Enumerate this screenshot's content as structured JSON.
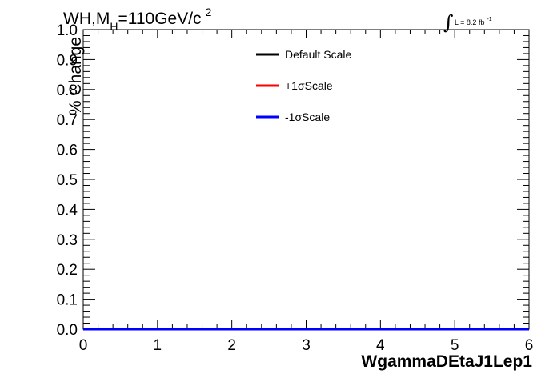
{
  "chart_data": {
    "type": "line",
    "title": {
      "main": "WH,M",
      "sub": "H",
      "rest": "=110GeV/c",
      "sup": "2"
    },
    "luminosity": {
      "integral_sign": "∫",
      "text": "L = 8.2 fb",
      "sup": "-1"
    },
    "xlabel": "WgammaDEtaJ1Lep1",
    "ylabel": "% Change",
    "xlim": [
      0,
      6
    ],
    "ylim": [
      0,
      1.0
    ],
    "x_ticks": [
      "0",
      "1",
      "2",
      "3",
      "4",
      "5",
      "6"
    ],
    "y_ticks": [
      "0.0",
      "0.1",
      "0.2",
      "0.3",
      "0.4",
      "0.5",
      "0.6",
      "0.7",
      "0.8",
      "0.9",
      "1.0"
    ],
    "legend": {
      "placement": "top-center",
      "entries": [
        {
          "label": "Default Scale",
          "color": "#000000"
        },
        {
          "label": "+1σScale",
          "color": "#ff0000"
        },
        {
          "label": "-1σScale",
          "color": "#0000ff"
        }
      ]
    },
    "series": [
      {
        "name": "Default Scale",
        "color": "#000000",
        "x": [
          0,
          6
        ],
        "y": [
          0,
          0
        ]
      },
      {
        "name": "+1σScale",
        "color": "#ff0000",
        "x": [
          0,
          6
        ],
        "y": [
          0,
          0
        ]
      },
      {
        "name": "-1σScale",
        "color": "#0000ff",
        "x": [
          0,
          6
        ],
        "y": [
          0,
          0
        ]
      }
    ]
  }
}
